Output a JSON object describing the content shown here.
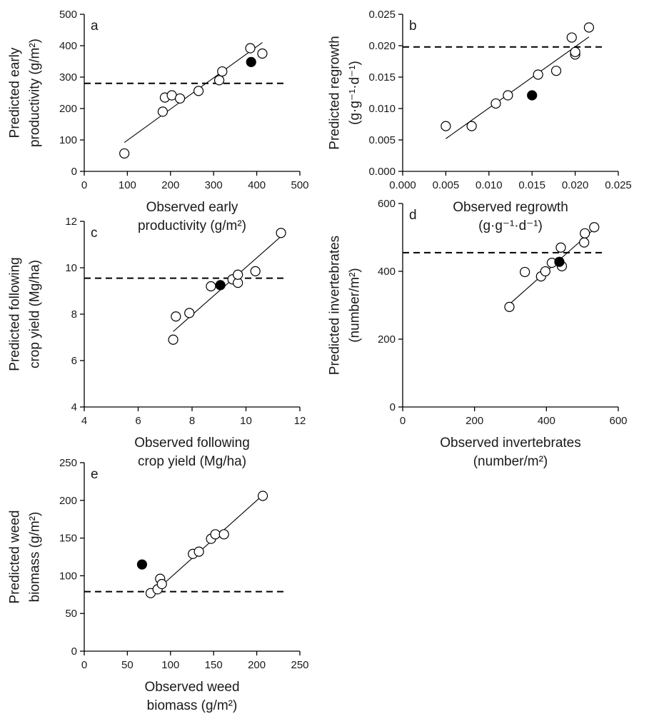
{
  "chart_data": [
    {
      "type": "scatter",
      "panel": "a",
      "xlabel": [
        "Observed early",
        "productivity (g/m²)"
      ],
      "ylabel": [
        "Predicted early",
        "productivity (g/m²)"
      ],
      "xlim": [
        0,
        500
      ],
      "ylim": [
        0,
        500
      ],
      "xticks": [
        "0",
        "100",
        "200",
        "300",
        "400",
        "500"
      ],
      "yticks": [
        "0",
        "100",
        "200",
        "300",
        "400",
        "500"
      ],
      "points": [
        {
          "x": 93,
          "y": 57
        },
        {
          "x": 182,
          "y": 190
        },
        {
          "x": 187,
          "y": 235
        },
        {
          "x": 203,
          "y": 242
        },
        {
          "x": 222,
          "y": 232
        },
        {
          "x": 265,
          "y": 256
        },
        {
          "x": 313,
          "y": 290
        },
        {
          "x": 320,
          "y": 318
        },
        {
          "x": 385,
          "y": 392
        },
        {
          "x": 413,
          "y": 375
        }
      ],
      "highlight": {
        "x": 387,
        "y": 348
      },
      "fit": [
        [
          93,
          92
        ],
        [
          413,
          410
        ]
      ],
      "reference": 280,
      "grid": false
    },
    {
      "type": "scatter",
      "panel": "b",
      "xlabel": [
        "Observed regrowth",
        "(g·g⁻¹·d⁻¹)"
      ],
      "ylabel": [
        "Predicted regrowth",
        "(g·g⁻¹·d⁻¹)"
      ],
      "xlim": [
        0,
        0.025
      ],
      "ylim": [
        0,
        0.025
      ],
      "xticks": [
        "0.000",
        "0.005",
        "0.010",
        "0.015",
        "0.020",
        "0.025"
      ],
      "yticks": [
        "0.000",
        "0.005",
        "0.010",
        "0.015",
        "0.020",
        "0.025"
      ],
      "points": [
        {
          "x": 0.005,
          "y": 0.0072
        },
        {
          "x": 0.008,
          "y": 0.0072
        },
        {
          "x": 0.0108,
          "y": 0.0108
        },
        {
          "x": 0.0122,
          "y": 0.0121
        },
        {
          "x": 0.0157,
          "y": 0.0154
        },
        {
          "x": 0.0178,
          "y": 0.016
        },
        {
          "x": 0.0196,
          "y": 0.0213
        },
        {
          "x": 0.02,
          "y": 0.0186
        },
        {
          "x": 0.02,
          "y": 0.019
        },
        {
          "x": 0.0216,
          "y": 0.0229
        }
      ],
      "highlight": {
        "x": 0.015,
        "y": 0.0121
      },
      "fit": [
        [
          0.005,
          0.0052
        ],
        [
          0.0216,
          0.0214
        ]
      ],
      "reference": 0.0198,
      "grid": false
    },
    {
      "type": "scatter",
      "panel": "c",
      "xlabel": [
        "Observed following",
        "crop yield (Mg/ha)"
      ],
      "ylabel": [
        "Predicted following",
        "crop yield (Mg/ha)"
      ],
      "xlim": [
        4,
        12
      ],
      "ylim": [
        4,
        12
      ],
      "xticks": [
        "4",
        "6",
        "8",
        "10",
        "12"
      ],
      "yticks": [
        "4",
        "6",
        "8",
        "10",
        "12"
      ],
      "points": [
        {
          "x": 7.3,
          "y": 6.9
        },
        {
          "x": 7.4,
          "y": 7.9
        },
        {
          "x": 7.9,
          "y": 8.05
        },
        {
          "x": 8.7,
          "y": 9.2
        },
        {
          "x": 9.5,
          "y": 9.5
        },
        {
          "x": 9.7,
          "y": 9.35
        },
        {
          "x": 9.7,
          "y": 9.7
        },
        {
          "x": 10.35,
          "y": 9.85
        },
        {
          "x": 11.3,
          "y": 11.5
        }
      ],
      "highlight": {
        "x": 9.05,
        "y": 9.25
      },
      "fit": [
        [
          7.3,
          7.25
        ],
        [
          11.3,
          11.35
        ]
      ],
      "reference": 9.55,
      "grid": false
    },
    {
      "type": "scatter",
      "panel": "d",
      "xlabel": [
        "Observed invertebrates",
        "(number/m²)"
      ],
      "ylabel": [
        "Predicted invertebrates",
        "(number/m²)"
      ],
      "xlim": [
        0,
        600
      ],
      "ylim": [
        0,
        600
      ],
      "xticks": [
        "0",
        "200",
        "400",
        "600"
      ],
      "yticks": [
        "0",
        "200",
        "400",
        "600"
      ],
      "points": [
        {
          "x": 297,
          "y": 295
        },
        {
          "x": 340,
          "y": 398
        },
        {
          "x": 385,
          "y": 385
        },
        {
          "x": 397,
          "y": 400
        },
        {
          "x": 415,
          "y": 425
        },
        {
          "x": 440,
          "y": 470
        },
        {
          "x": 443,
          "y": 415
        },
        {
          "x": 505,
          "y": 485
        },
        {
          "x": 507,
          "y": 512
        },
        {
          "x": 533,
          "y": 530
        }
      ],
      "highlight": {
        "x": 436,
        "y": 428
      },
      "fit": [
        [
          297,
          303
        ],
        [
          533,
          525
        ]
      ],
      "reference": 455,
      "grid": false
    },
    {
      "type": "scatter",
      "panel": "e",
      "xlabel": [
        "Observed weed",
        "biomass (g/m²)"
      ],
      "ylabel": [
        "Predicted weed",
        "biomass (g/m²)"
      ],
      "xlim": [
        0,
        250
      ],
      "ylim": [
        0,
        250
      ],
      "xticks": [
        "0",
        "50",
        "100",
        "150",
        "200",
        "250"
      ],
      "yticks": [
        "0",
        "50",
        "100",
        "150",
        "200",
        "250"
      ],
      "points": [
        {
          "x": 77,
          "y": 77
        },
        {
          "x": 85,
          "y": 82
        },
        {
          "x": 88,
          "y": 96
        },
        {
          "x": 90,
          "y": 89
        },
        {
          "x": 126,
          "y": 129
        },
        {
          "x": 133,
          "y": 132
        },
        {
          "x": 147,
          "y": 149
        },
        {
          "x": 152,
          "y": 155
        },
        {
          "x": 162,
          "y": 155
        },
        {
          "x": 207,
          "y": 206
        }
      ],
      "highlight": {
        "x": 67,
        "y": 115
      },
      "fit": [
        [
          77,
          74
        ],
        [
          207,
          207
        ]
      ],
      "reference": 79,
      "grid": false
    }
  ]
}
